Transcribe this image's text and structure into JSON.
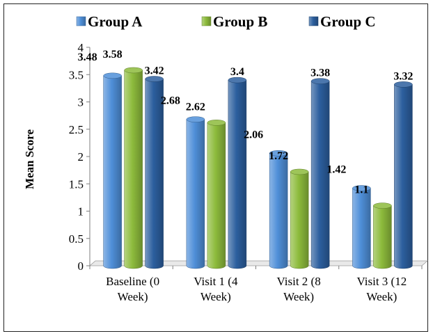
{
  "chart_data": {
    "type": "bar",
    "categories": [
      [
        "Baseline (0",
        "Week)"
      ],
      [
        "Visit 1 (4",
        "Week)"
      ],
      [
        "Visit 2 (8",
        "Week)"
      ],
      [
        "Visit 3 (12",
        "Week)"
      ]
    ],
    "series": [
      {
        "name": "Group A",
        "values": [
          3.48,
          2.68,
          2.06,
          1.42
        ],
        "labels": [
          "3.48",
          "2.68",
          "2.06",
          "1.42"
        ],
        "color": "#4F8FD8"
      },
      {
        "name": "Group B",
        "values": [
          3.58,
          2.62,
          1.72,
          1.1
        ],
        "labels": [
          "3.58",
          "2.62",
          "1.72",
          "1.1"
        ],
        "color": "#8DBB3C"
      },
      {
        "name": "Group C",
        "values": [
          3.42,
          3.4,
          3.38,
          3.32
        ],
        "labels": [
          "3.42",
          "3.4",
          "3.38",
          "3.32"
        ],
        "color": "#2C5F9E"
      }
    ],
    "ylabel": "Mean Score",
    "xlabel": "",
    "ylim": [
      0,
      4
    ],
    "yticks": [
      "0",
      "0.5",
      "1",
      "1.5",
      "2",
      "2.5",
      "3",
      "3.5",
      "4"
    ],
    "legend_position": "top",
    "grid": false
  }
}
